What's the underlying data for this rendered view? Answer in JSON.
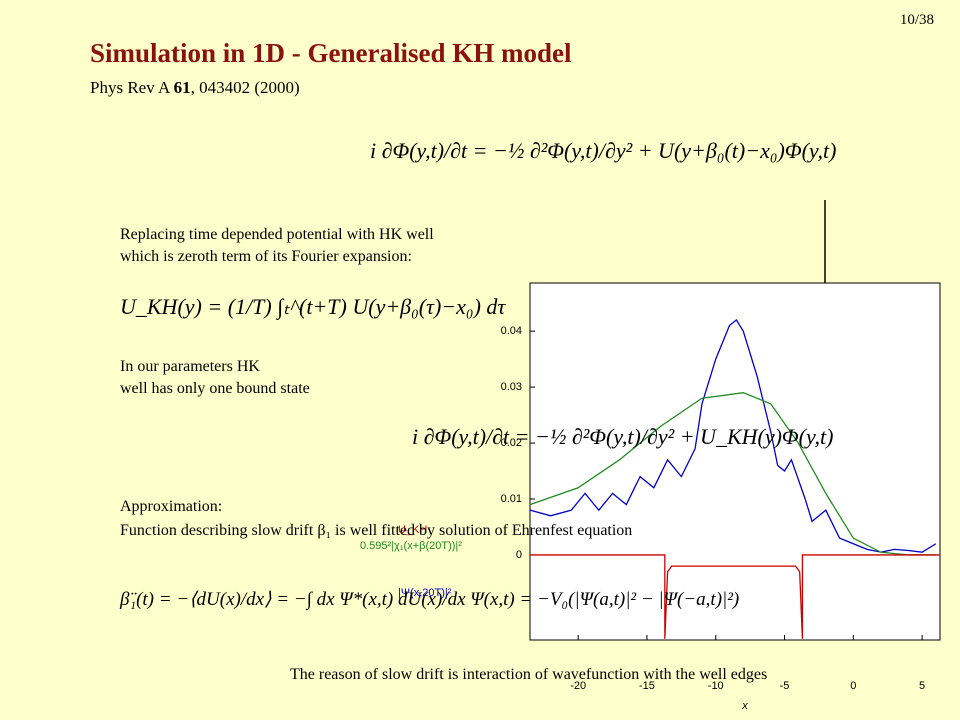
{
  "page_number": "10/38",
  "title": "Simulation in 1D - Generalised KH model",
  "reference": {
    "journal": "Phys Rev A ",
    "volume": "61",
    "rest": ", 043402 (2000)"
  },
  "equations": [
    "i ∂Φ(y,t)/∂t = −½ ∂²Φ(y,t)/∂y² + U(y+β₀(t)−x₀)Φ(y,t)",
    "U_KH(y) = (1/T) ∫ₜ^(t+T) U(y+β₀(τ)−x₀) dτ",
    "i ∂Φ(y,t)/∂t = −½ ∂²Φ(y,t)/∂y² + U_KH(y)Φ(y,t)",
    "β̈₁(t) = −⟨dU(x)/dx⟩ = −∫ dx Ψ*(x,t) dU(x)/dx Ψ(x,t) = −V₀(|Ψ(a,t)|² − |Ψ(−a,t)|²)"
  ],
  "text": {
    "replacing": [
      "Replacing time depended potential with HK well",
      "which is zeroth term of its Fourier expansion:"
    ],
    "parameters": [
      "In our parameters HK",
      "well has only one bound state"
    ],
    "approximation_heading": "Approximation:",
    "approximation": "Function describing slow drift β₁ is well fitted by solution of Ehrenfest equation",
    "reason": "The reason of slow drift is interaction of wavefunction with the well edges"
  },
  "plot": {
    "xlabel": "x",
    "xlim": [
      -23.5,
      6.3
    ],
    "ylim": [
      -0.0152,
      0.0486
    ],
    "xticks": [
      -20,
      -15,
      -10,
      -5,
      0,
      5
    ],
    "yticks": [
      0,
      0.01,
      0.02,
      0.03,
      0.04
    ],
    "series": [
      {
        "name": "|Ψ(x,20T)|²",
        "color": "#0000cc",
        "x": [
          -23.5,
          -22,
          -20.5,
          -19.5,
          -18.5,
          -17.5,
          -16.5,
          -15.5,
          -14.5,
          -13.5,
          -12.5,
          -11.5,
          -11,
          -10,
          -9,
          -8.5,
          -8,
          -7,
          -6,
          -5.5,
          -5,
          -4.5,
          -3.5,
          -3,
          -2,
          -1,
          0,
          1,
          2,
          3,
          4,
          5,
          6
        ],
        "values": [
          0.008,
          0.007,
          0.008,
          0.011,
          0.008,
          0.011,
          0.009,
          0.014,
          0.012,
          0.017,
          0.014,
          0.019,
          0.027,
          0.035,
          0.041,
          0.042,
          0.04,
          0.032,
          0.022,
          0.016,
          0.015,
          0.017,
          0.01,
          0.006,
          0.008,
          0.003,
          0.002,
          0.001,
          0.0005,
          0.001,
          0.0008,
          0.0005,
          0.002
        ]
      },
      {
        "name": "0.595²|χ₁(x+β(20T))|²",
        "color": "#228b22",
        "x": [
          -23.5,
          -20,
          -17,
          -14,
          -11,
          -8,
          -6,
          -4,
          -2,
          0,
          2,
          4,
          6
        ],
        "values": [
          0.009,
          0.012,
          0.017,
          0.023,
          0.028,
          0.029,
          0.027,
          0.02,
          0.011,
          0.003,
          0.0005,
          0,
          0
        ]
      },
      {
        "name": "U_KH",
        "color": "#cc0000",
        "x": [
          -23.5,
          -13.7,
          -13.7,
          -13.5,
          -13.2,
          -4.2,
          -3.9,
          -3.7,
          -3.7,
          6.3
        ],
        "values": [
          0,
          0,
          -0.015,
          -0.003,
          -0.002,
          -0.002,
          -0.003,
          -0.015,
          0,
          0
        ]
      }
    ]
  }
}
